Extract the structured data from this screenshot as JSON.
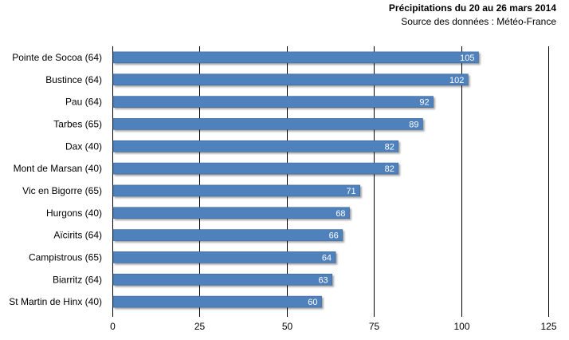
{
  "chart_data": {
    "type": "bar",
    "orientation": "horizontal",
    "title": "Précipitations  du 20 au 26 mars 2014",
    "subtitle": "Source des données : Météo-France",
    "categories": [
      "Pointe de Socoa (64)",
      "Bustince (64)",
      "Pau (64)",
      "Tarbes (65)",
      "Dax (40)",
      "Mont de Marsan (40)",
      "Vic en Bigorre (65)",
      "Hurgons (40)",
      "Aïcirits (64)",
      "Campistrous (65)",
      "Biarritz (64)",
      "St Martin de Hinx (40)"
    ],
    "values": [
      105,
      102,
      92,
      89,
      82,
      82,
      71,
      68,
      66,
      64,
      63,
      60
    ],
    "xlim": [
      0,
      125
    ],
    "xticks": [
      0,
      25,
      50,
      75,
      100,
      125
    ],
    "grid": "vertical",
    "legend": "none",
    "data_labels": "inside-end",
    "colors": {
      "bar": "#4f81bd",
      "bar_edge": "#3a6496",
      "grid": "#000000",
      "label": "#ffffff"
    }
  }
}
